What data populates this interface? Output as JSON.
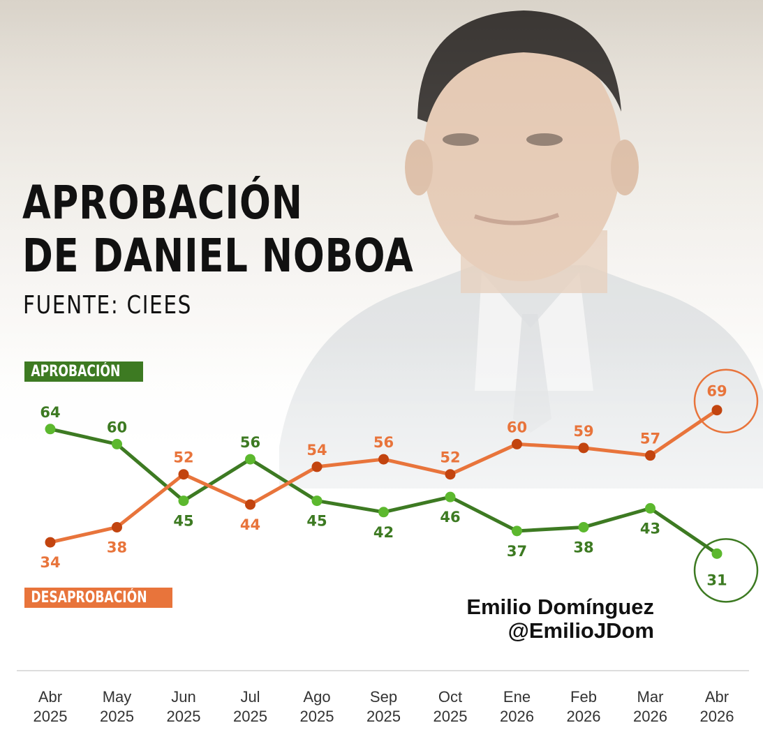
{
  "title_line1": "APROBACIÓN",
  "title_line2": "DE DANIEL NOBOA",
  "source": "FUENTE: CIEES",
  "credit": {
    "name": "Emilio Domínguez",
    "handle": "@EmilioJDom"
  },
  "colors": {
    "approval": "#3d7a22",
    "approval_dot": "#5cb82e",
    "disapproval": "#e8743b",
    "disapproval_dot": "#c2440f"
  },
  "chart_data": {
    "type": "line",
    "categories": [
      [
        "Abr",
        "2025"
      ],
      [
        "May",
        "2025"
      ],
      [
        "Jun",
        "2025"
      ],
      [
        "Jul",
        "2025"
      ],
      [
        "Ago",
        "2025"
      ],
      [
        "Sep",
        "2025"
      ],
      [
        "Oct",
        "2025"
      ],
      [
        "Ene",
        "2026"
      ],
      [
        "Feb",
        "2026"
      ],
      [
        "Mar",
        "2026"
      ],
      [
        "Abr",
        "2026"
      ]
    ],
    "series": [
      {
        "name": "APROBACIÓN",
        "values": [
          64,
          60,
          45,
          56,
          45,
          42,
          46,
          37,
          38,
          43,
          31
        ]
      },
      {
        "name": "DESAPROBACIÓN",
        "values": [
          34,
          38,
          52,
          44,
          54,
          56,
          52,
          60,
          59,
          57,
          69
        ]
      }
    ],
    "data_labels": true,
    "highlight_last_point": true,
    "grid": false
  }
}
